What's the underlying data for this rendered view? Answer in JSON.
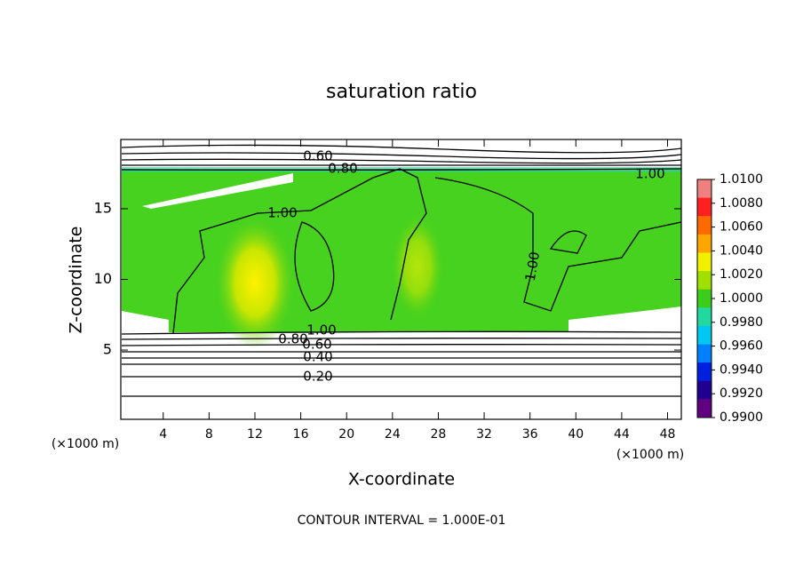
{
  "chart_data": {
    "type": "contour",
    "title": "saturation ratio",
    "xlabel": "X-coordinate",
    "ylabel": "Z-coordinate",
    "x_unit": "(×1000 m)",
    "y_unit": "(×1000 m)",
    "footnote": "CONTOUR INTERVAL = 1.000E-01",
    "xlim": [
      0.3,
      49.2
    ],
    "ylim": [
      0.1,
      19.9
    ],
    "xticks": [
      4,
      8,
      12,
      16,
      20,
      24,
      28,
      32,
      36,
      40,
      44,
      48
    ],
    "yticks": [
      5,
      10,
      15
    ],
    "contour_labels": [
      "0.60",
      "0.80",
      "1.00",
      "1.00",
      "1.00",
      "0.80",
      "0.60",
      "1.00",
      "0.40",
      "0.20"
    ],
    "colorbar": {
      "lim": [
        0.99,
        1.01
      ],
      "ticks": [
        {
          "value": 1.01,
          "label": "1.0100"
        },
        {
          "value": 1.008,
          "label": "1.0080"
        },
        {
          "value": 1.006,
          "label": "1.0060"
        },
        {
          "value": 1.004,
          "label": "1.0040"
        },
        {
          "value": 1.002,
          "label": "1.0020"
        },
        {
          "value": 1.0,
          "label": "1.0000"
        },
        {
          "value": 0.998,
          "label": "0.9980"
        },
        {
          "value": 0.996,
          "label": "0.9960"
        },
        {
          "value": 0.994,
          "label": "0.9940"
        },
        {
          "value": 0.992,
          "label": "0.9920"
        },
        {
          "value": 0.99,
          "label": "0.9900"
        }
      ],
      "colors": [
        "#f08080",
        "#ff2020",
        "#ff6a00",
        "#ffa500",
        "#f0f000",
        "#a0e000",
        "#3ccc1c",
        "#20d8a0",
        "#00c8f0",
        "#0080ff",
        "#0020e0",
        "#200090",
        "#600080"
      ]
    }
  }
}
